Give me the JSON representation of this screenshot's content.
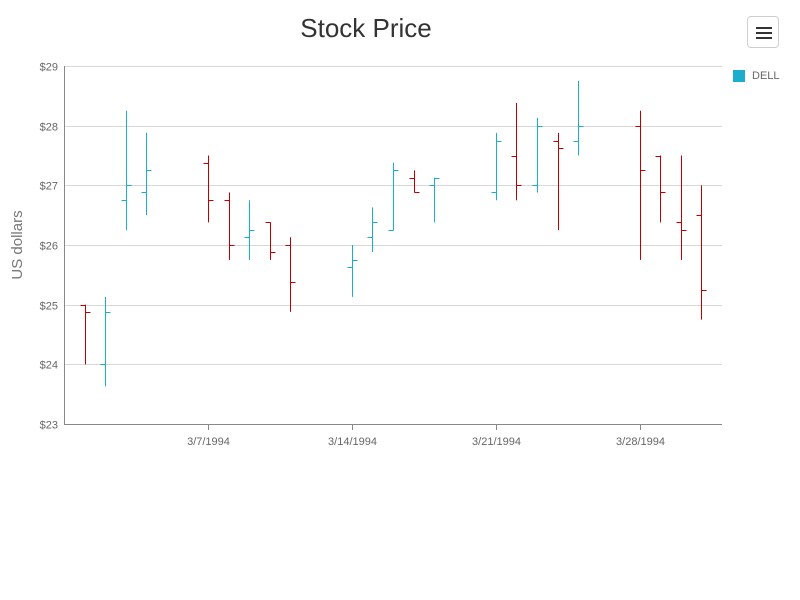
{
  "menu": {
    "icon": "hamburger-menu-icon"
  },
  "legend": {
    "label": "DELL",
    "color": "#1aadce"
  },
  "colors": {
    "up": "#1aadce",
    "down": "#c00000",
    "grid": "#d8d8d8",
    "axis": "#888888",
    "title": "#333333",
    "tick": "#666666"
  },
  "chart_data": {
    "type": "ohlc",
    "title": "Stock Price",
    "xlabel": "",
    "ylabel": "US dollars",
    "ylim": [
      23,
      29
    ],
    "yticks": [
      "$23",
      "$24",
      "$25",
      "$26",
      "$27",
      "$28",
      "$29"
    ],
    "xticks": [
      {
        "date": "1994-03-07",
        "label": "3/7/1994"
      },
      {
        "date": "1994-03-14",
        "label": "3/14/1994"
      },
      {
        "date": "1994-03-21",
        "label": "3/21/1994"
      },
      {
        "date": "1994-03-28",
        "label": "3/28/1994"
      }
    ],
    "grid": true,
    "legend_position": "right",
    "series": [
      {
        "name": "DELL",
        "points": [
          {
            "date": "1994-03-01",
            "open": 25.0,
            "high": 25.0,
            "low": 24.0,
            "close": 24.88
          },
          {
            "date": "1994-03-02",
            "open": 24.0,
            "high": 25.13,
            "low": 23.63,
            "close": 24.88
          },
          {
            "date": "1994-03-03",
            "open": 26.75,
            "high": 28.25,
            "low": 26.25,
            "close": 27.0
          },
          {
            "date": "1994-03-04",
            "open": 26.88,
            "high": 27.88,
            "low": 26.5,
            "close": 27.25
          },
          {
            "date": "1994-03-07",
            "open": 27.38,
            "high": 27.5,
            "low": 26.38,
            "close": 26.75
          },
          {
            "date": "1994-03-08",
            "open": 26.75,
            "high": 26.88,
            "low": 25.75,
            "close": 26.0
          },
          {
            "date": "1994-03-09",
            "open": 26.13,
            "high": 26.75,
            "low": 25.75,
            "close": 26.25
          },
          {
            "date": "1994-03-10",
            "open": 26.38,
            "high": 26.38,
            "low": 25.75,
            "close": 25.88
          },
          {
            "date": "1994-03-11",
            "open": 26.0,
            "high": 26.13,
            "low": 24.88,
            "close": 25.38
          },
          {
            "date": "1994-03-14",
            "open": 25.63,
            "high": 26.0,
            "low": 25.13,
            "close": 25.75
          },
          {
            "date": "1994-03-15",
            "open": 26.13,
            "high": 26.63,
            "low": 25.88,
            "close": 26.38
          },
          {
            "date": "1994-03-16",
            "open": 26.25,
            "high": 27.38,
            "low": 26.25,
            "close": 27.25
          },
          {
            "date": "1994-03-17",
            "open": 27.13,
            "high": 27.25,
            "low": 26.88,
            "close": 26.88
          },
          {
            "date": "1994-03-18",
            "open": 27.0,
            "high": 27.13,
            "low": 26.38,
            "close": 27.13
          },
          {
            "date": "1994-03-21",
            "open": 26.88,
            "high": 27.88,
            "low": 26.75,
            "close": 27.75
          },
          {
            "date": "1994-03-22",
            "open": 27.5,
            "high": 28.38,
            "low": 26.75,
            "close": 27.0
          },
          {
            "date": "1994-03-23",
            "open": 27.0,
            "high": 28.13,
            "low": 26.88,
            "close": 28.0
          },
          {
            "date": "1994-03-24",
            "open": 27.75,
            "high": 27.88,
            "low": 26.25,
            "close": 27.63
          },
          {
            "date": "1994-03-25",
            "open": 27.75,
            "high": 28.75,
            "low": 27.5,
            "close": 28.0
          },
          {
            "date": "1994-03-28",
            "open": 28.0,
            "high": 28.25,
            "low": 25.75,
            "close": 27.25
          },
          {
            "date": "1994-03-29",
            "open": 27.5,
            "high": 27.5,
            "low": 26.38,
            "close": 26.88
          },
          {
            "date": "1994-03-30",
            "open": 26.38,
            "high": 27.5,
            "low": 25.75,
            "close": 26.25
          },
          {
            "date": "1994-03-31",
            "open": 26.5,
            "high": 27.0,
            "low": 24.75,
            "close": 25.25
          }
        ]
      }
    ]
  }
}
